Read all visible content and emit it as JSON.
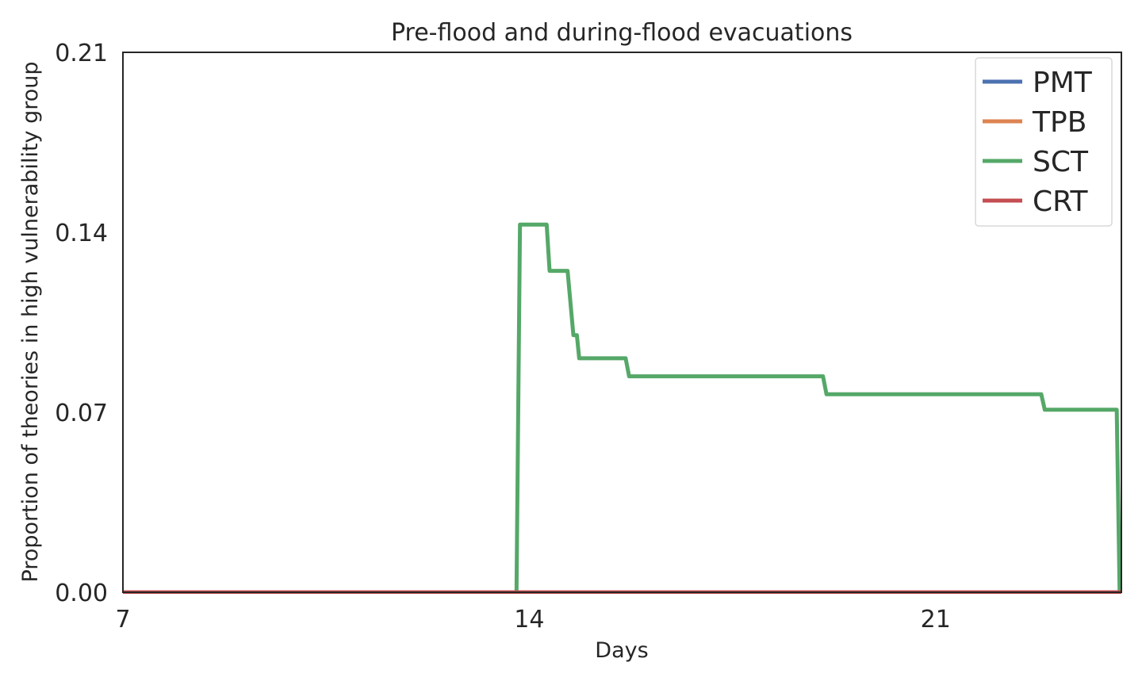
{
  "chart_data": {
    "type": "line",
    "title": "Pre-flood and during-flood evacuations",
    "xlabel": "Days",
    "ylabel": "Proportion of theories in high vulnerability group",
    "xlim": [
      7,
      24.2
    ],
    "ylim": [
      0,
      0.21
    ],
    "x_ticks": [
      7,
      14,
      21
    ],
    "y_ticks": [
      0.0,
      0.07,
      0.14,
      0.21
    ],
    "y_tick_labels": [
      "0.00",
      "0.07",
      "0.14",
      "0.21"
    ],
    "grid": false,
    "legend_position": "top-right",
    "series": [
      {
        "name": "PMT",
        "color": "#4c72b0",
        "points": [
          [
            7,
            0
          ],
          [
            24.2,
            0
          ]
        ]
      },
      {
        "name": "TPB",
        "color": "#dd8452",
        "points": [
          [
            7,
            0
          ],
          [
            24.2,
            0
          ]
        ]
      },
      {
        "name": "SCT",
        "color": "#55a868",
        "points": [
          [
            7,
            0
          ],
          [
            13.78,
            0
          ],
          [
            13.84,
            0.143
          ],
          [
            14.3,
            0.143
          ],
          [
            14.35,
            0.125
          ],
          [
            14.66,
            0.125
          ],
          [
            14.72,
            0.11
          ],
          [
            14.76,
            0.1
          ],
          [
            14.82,
            0.1
          ],
          [
            14.86,
            0.091
          ],
          [
            15.66,
            0.091
          ],
          [
            15.72,
            0.084
          ],
          [
            19.06,
            0.084
          ],
          [
            19.12,
            0.077
          ],
          [
            22.82,
            0.077
          ],
          [
            22.88,
            0.071
          ],
          [
            24.12,
            0.071
          ],
          [
            24.17,
            0
          ]
        ]
      },
      {
        "name": "CRT",
        "color": "#c44e52",
        "points": [
          [
            7,
            0
          ],
          [
            24.2,
            0
          ]
        ]
      }
    ]
  }
}
